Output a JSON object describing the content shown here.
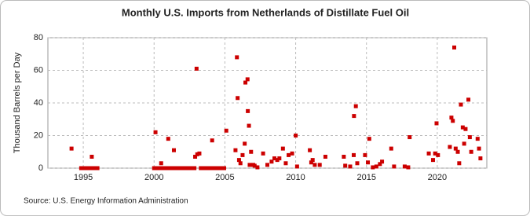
{
  "chart_data": {
    "type": "scatter",
    "title": "Monthly U.S. Imports from Netherlands of Distillate Fuel Oil",
    "y_label": "Thousand Barrels per Day",
    "source": "Source: U.S. Energy Information Administration",
    "color": "#cc0000",
    "grid": true,
    "xlim": [
      1992.5,
      2023.5
    ],
    "xticks": [
      1995,
      2000,
      2005,
      2010,
      2015,
      2020
    ],
    "ylim": [
      0,
      80
    ],
    "yticks": [
      0,
      20,
      40,
      60,
      80
    ],
    "x": [
      1994.17,
      1994.85,
      1995.0,
      1995.17,
      1995.34,
      1995.51,
      1995.6,
      1995.68,
      1995.85,
      1996.0,
      2000.0,
      2000.1,
      2000.17,
      2000.34,
      2000.5,
      2000.51,
      2000.68,
      2000.85,
      2001.0,
      2001.02,
      2001.19,
      2001.36,
      2001.4,
      2001.53,
      2001.7,
      2001.87,
      2002.04,
      2002.21,
      2002.38,
      2002.55,
      2002.72,
      2002.85,
      2002.9,
      2003.0,
      2003.05,
      2003.2,
      2003.3,
      2003.47,
      2003.64,
      2003.81,
      2003.98,
      2004.1,
      2004.15,
      2004.32,
      2004.49,
      2004.66,
      2004.83,
      2004.95,
      2005.1,
      2005.75,
      2005.85,
      2005.9,
      2006.0,
      2006.1,
      2006.25,
      2006.4,
      2006.45,
      2006.6,
      2006.62,
      2006.7,
      2006.75,
      2006.85,
      2007.0,
      2007.1,
      2007.3,
      2007.7,
      2008.0,
      2008.3,
      2008.5,
      2008.7,
      2008.85,
      2009.1,
      2009.3,
      2009.5,
      2009.75,
      2010.0,
      2010.1,
      2011.0,
      2011.1,
      2011.2,
      2011.35,
      2011.7,
      2012.1,
      2013.4,
      2013.5,
      2013.85,
      2014.1,
      2014.12,
      2014.25,
      2014.35,
      2014.9,
      2015.1,
      2015.2,
      2015.45,
      2015.7,
      2015.95,
      2016.1,
      2016.75,
      2016.95,
      2017.7,
      2017.95,
      2018.05,
      2019.4,
      2019.7,
      2019.85,
      2019.95,
      2020.05,
      2020.89,
      2021.0,
      2021.1,
      2021.2,
      2021.3,
      2021.45,
      2021.55,
      2021.67,
      2021.8,
      2021.9,
      2022.0,
      2022.2,
      2022.3,
      2022.4,
      2022.85,
      2022.95,
      2023.05
    ],
    "values": [
      12,
      0,
      0,
      0,
      0,
      0,
      7,
      0,
      0,
      0,
      0,
      22,
      0,
      0,
      3,
      0,
      0,
      0,
      18,
      0,
      0,
      0,
      11,
      0,
      0,
      0,
      0,
      0,
      0,
      0,
      0,
      0,
      7,
      61,
      8.5,
      9,
      0,
      0,
      0,
      0,
      0,
      17,
      0,
      0,
      0,
      0,
      0,
      0,
      23,
      11,
      68,
      43,
      5,
      3,
      8,
      15,
      52.5,
      54.5,
      35,
      26,
      2,
      10,
      2,
      1.5,
      0.5,
      9,
      2,
      4,
      6,
      5,
      6,
      12,
      3,
      8,
      9,
      20,
      1,
      11,
      3.5,
      5,
      2,
      2,
      7,
      7,
      1.5,
      1,
      8,
      32,
      38,
      3,
      8,
      3.5,
      18,
      0.5,
      1,
      2.5,
      4,
      12,
      1,
      1,
      0.5,
      19,
      9,
      5,
      9,
      27.5,
      8,
      13,
      31,
      29,
      74,
      12,
      10,
      3,
      39,
      25,
      15,
      24,
      42,
      19,
      10,
      18,
      12,
      6
    ]
  }
}
